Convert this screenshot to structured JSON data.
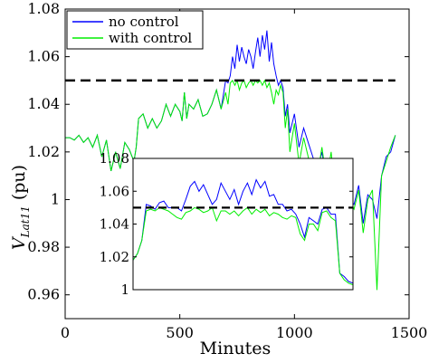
{
  "chart_data": {
    "type": "line",
    "xlabel": "Minutes",
    "ylabel_main": "V",
    "ylabel_sub": "Lat11",
    "ylabel_unit": "(pu)",
    "xlim": [
      0,
      1500
    ],
    "ylim": [
      0.95,
      1.08
    ],
    "xticks": [
      0,
      500,
      1000,
      1500
    ],
    "xtick_labels": [
      "0",
      "500",
      "1000",
      "1500"
    ],
    "yticks": [
      0.96,
      0.98,
      1.0,
      1.02,
      1.04,
      1.06,
      1.08
    ],
    "ytick_labels": [
      "0.96",
      "0.98",
      "1",
      "1.02",
      "1.04",
      "1.06",
      "1.08"
    ],
    "legend_position": "top-left",
    "grid": false,
    "threshold": {
      "value": 1.05,
      "style": "dashed",
      "color": "#000000"
    },
    "series": [
      {
        "name": "no control",
        "color": "#0000ff",
        "x": [
          0,
          20,
          40,
          60,
          80,
          100,
          120,
          140,
          160,
          180,
          200,
          220,
          240,
          260,
          280,
          300,
          310,
          320,
          340,
          360,
          380,
          400,
          420,
          440,
          460,
          480,
          500,
          510,
          520,
          530,
          540,
          560,
          580,
          600,
          620,
          640,
          660,
          680,
          700,
          710,
          720,
          730,
          740,
          750,
          760,
          770,
          780,
          790,
          800,
          810,
          820,
          830,
          840,
          850,
          860,
          870,
          880,
          890,
          900,
          910,
          920,
          930,
          940,
          950,
          960,
          970,
          980,
          1000,
          1020,
          1040,
          1060,
          1080,
          1100,
          1120,
          1140,
          1160,
          1180,
          1200,
          1220,
          1240,
          1260,
          1280,
          1300,
          1320,
          1340,
          1360,
          1380,
          1400,
          1420,
          1440
        ],
        "values": [
          1.026,
          1.026,
          1.025,
          1.027,
          1.024,
          1.026,
          1.022,
          1.027,
          1.018,
          1.025,
          1.012,
          1.02,
          1.013,
          1.024,
          1.021,
          1.016,
          1.022,
          1.034,
          1.036,
          1.03,
          1.034,
          1.03,
          1.033,
          1.04,
          1.035,
          1.04,
          1.037,
          1.033,
          1.045,
          1.034,
          1.04,
          1.038,
          1.042,
          1.035,
          1.036,
          1.04,
          1.046,
          1.038,
          1.05,
          1.049,
          1.052,
          1.06,
          1.055,
          1.065,
          1.058,
          1.064,
          1.06,
          1.057,
          1.063,
          1.06,
          1.055,
          1.062,
          1.068,
          1.06,
          1.069,
          1.063,
          1.071,
          1.058,
          1.066,
          1.057,
          1.052,
          1.048,
          1.05,
          1.047,
          1.035,
          1.04,
          1.028,
          1.036,
          1.022,
          1.03,
          1.024,
          1.018,
          1.012,
          1.02,
          1.008,
          1.014,
          1.0,
          1.004,
          0.995,
          1.0,
          0.998,
          1.006,
          0.99,
          1.002,
          1.0,
          0.992,
          1.01,
          1.018,
          1.02,
          1.027
        ]
      },
      {
        "name": "with control",
        "color": "#00ee00",
        "x": [
          0,
          20,
          40,
          60,
          80,
          100,
          120,
          140,
          160,
          180,
          200,
          220,
          240,
          260,
          280,
          300,
          310,
          320,
          340,
          360,
          380,
          400,
          420,
          440,
          460,
          480,
          500,
          510,
          520,
          530,
          540,
          560,
          580,
          600,
          620,
          640,
          660,
          680,
          700,
          710,
          720,
          730,
          740,
          750,
          760,
          770,
          780,
          790,
          800,
          810,
          820,
          830,
          840,
          850,
          860,
          870,
          880,
          890,
          900,
          910,
          920,
          930,
          940,
          950,
          960,
          970,
          980,
          1000,
          1020,
          1040,
          1060,
          1080,
          1100,
          1120,
          1140,
          1160,
          1180,
          1200,
          1220,
          1240,
          1260,
          1280,
          1300,
          1320,
          1340,
          1360,
          1380,
          1400,
          1420,
          1440
        ],
        "values": [
          1.026,
          1.026,
          1.025,
          1.027,
          1.024,
          1.026,
          1.022,
          1.027,
          1.018,
          1.025,
          1.012,
          1.02,
          1.013,
          1.024,
          1.021,
          1.016,
          1.022,
          1.034,
          1.036,
          1.03,
          1.034,
          1.03,
          1.033,
          1.04,
          1.035,
          1.04,
          1.037,
          1.033,
          1.045,
          1.034,
          1.04,
          1.038,
          1.042,
          1.035,
          1.036,
          1.04,
          1.046,
          1.038,
          1.045,
          1.04,
          1.049,
          1.05,
          1.048,
          1.05,
          1.046,
          1.049,
          1.05,
          1.047,
          1.049,
          1.05,
          1.048,
          1.05,
          1.049,
          1.05,
          1.048,
          1.05,
          1.047,
          1.049,
          1.045,
          1.04,
          1.046,
          1.044,
          1.048,
          1.045,
          1.03,
          1.038,
          1.02,
          1.032,
          1.015,
          1.026,
          1.018,
          1.008,
          1.01,
          1.022,
          1.008,
          1.02,
          0.998,
          1.012,
          0.992,
          1.0,
          0.996,
          1.004,
          0.986,
          1.0,
          1.004,
          0.962,
          1.01,
          1.016,
          1.022,
          1.027
        ]
      }
    ],
    "inset": {
      "xlim": [
        0,
        100
      ],
      "ylim": [
        1.0,
        1.08
      ],
      "yticks": [
        1.0,
        1.02,
        1.04,
        1.06,
        1.08
      ],
      "ytick_labels": [
        "1",
        "1.02",
        "1.04",
        "1.06",
        "1.08"
      ],
      "threshold": 1.05,
      "series": [
        {
          "name": "no control",
          "color": "#0000ff",
          "x": [
            0,
            2,
            4,
            6,
            8,
            10,
            12,
            14,
            16,
            18,
            20,
            22,
            24,
            26,
            28,
            30,
            32,
            34,
            36,
            38,
            40,
            42,
            44,
            46,
            48,
            50,
            52,
            54,
            56,
            58,
            60,
            62,
            64,
            66,
            68,
            70,
            72,
            74,
            76,
            78,
            80,
            82,
            84,
            86,
            88,
            90,
            92,
            94,
            96,
            98,
            100
          ],
          "values": [
            1.018,
            1.022,
            1.03,
            1.052,
            1.051,
            1.049,
            1.053,
            1.054,
            1.05,
            1.05,
            1.05,
            1.048,
            1.055,
            1.063,
            1.066,
            1.06,
            1.064,
            1.058,
            1.052,
            1.055,
            1.065,
            1.06,
            1.055,
            1.061,
            1.052,
            1.06,
            1.065,
            1.058,
            1.067,
            1.062,
            1.066,
            1.057,
            1.058,
            1.052,
            1.052,
            1.048,
            1.049,
            1.046,
            1.04,
            1.032,
            1.044,
            1.042,
            1.04,
            1.049,
            1.05,
            1.046,
            1.046,
            1.01,
            1.008,
            1.005,
            1.004
          ]
        },
        {
          "name": "with control",
          "color": "#00ee00",
          "x": [
            0,
            2,
            4,
            6,
            8,
            10,
            12,
            14,
            16,
            18,
            20,
            22,
            24,
            26,
            28,
            30,
            32,
            34,
            36,
            38,
            40,
            42,
            44,
            46,
            48,
            50,
            52,
            54,
            56,
            58,
            60,
            62,
            64,
            66,
            68,
            70,
            72,
            74,
            76,
            78,
            80,
            82,
            84,
            86,
            88,
            90,
            92,
            94,
            96,
            98,
            100
          ],
          "values": [
            1.018,
            1.022,
            1.03,
            1.048,
            1.049,
            1.048,
            1.05,
            1.049,
            1.048,
            1.046,
            1.044,
            1.043,
            1.047,
            1.048,
            1.05,
            1.049,
            1.047,
            1.048,
            1.05,
            1.042,
            1.048,
            1.048,
            1.046,
            1.048,
            1.045,
            1.048,
            1.05,
            1.046,
            1.049,
            1.047,
            1.049,
            1.045,
            1.047,
            1.046,
            1.044,
            1.043,
            1.045,
            1.044,
            1.034,
            1.03,
            1.04,
            1.04,
            1.036,
            1.047,
            1.048,
            1.044,
            1.042,
            1.01,
            1.006,
            1.004,
            1.003
          ]
        }
      ]
    }
  }
}
